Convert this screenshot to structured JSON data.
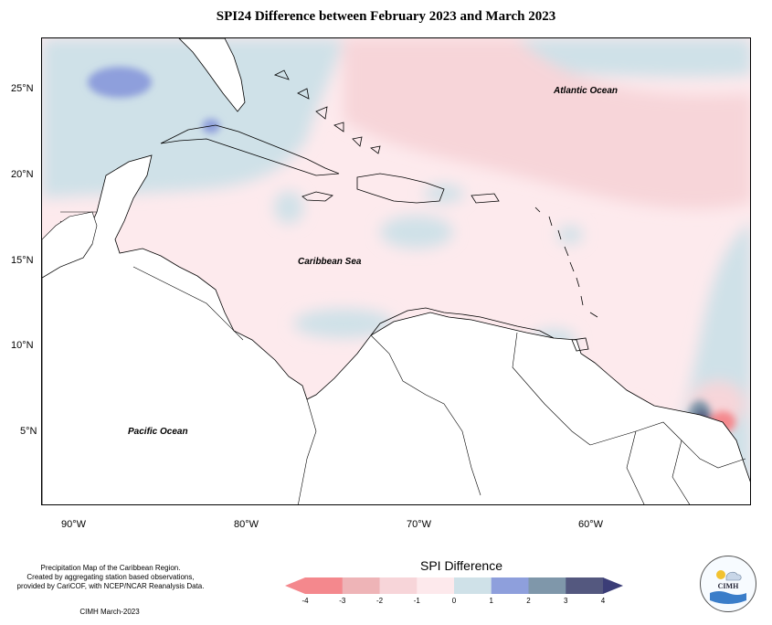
{
  "title": "SPI24 Difference between February 2023 and March 2023",
  "map": {
    "lat_ticks": [
      "25°N",
      "20°N",
      "15°N",
      "10°N",
      "5°N"
    ],
    "lon_ticks": [
      "90°W",
      "80°W",
      "70°W",
      "60°W"
    ],
    "ocean_labels": {
      "atlantic": "Atlantic Ocean",
      "caribbean": "Caribbean Sea",
      "pacific": "Pacific Ocean"
    }
  },
  "footer": {
    "line1": "Precipitation Map of the Caribbean Region.",
    "line2": "Created by aggregating station based observations,",
    "line3": "provided by CariCOF, with NCEP/NCAR Reanalysis Data.",
    "credit": "CIMH March-2023"
  },
  "legend": {
    "title": "SPI Difference",
    "ticks": [
      "-4",
      "-3",
      "-2",
      "-1",
      "0",
      "1",
      "2",
      "3",
      "4"
    ],
    "colors": [
      "#f4888d",
      "#eeb4b7",
      "#f7d5d9",
      "#fde9ec",
      "#cfe1e8",
      "#8e9fdc",
      "#7f97aa",
      "#54587f"
    ],
    "low_arrow": "#f4888d",
    "high_arrow": "#3b3d77"
  },
  "logo": {
    "text": "CIMH"
  }
}
